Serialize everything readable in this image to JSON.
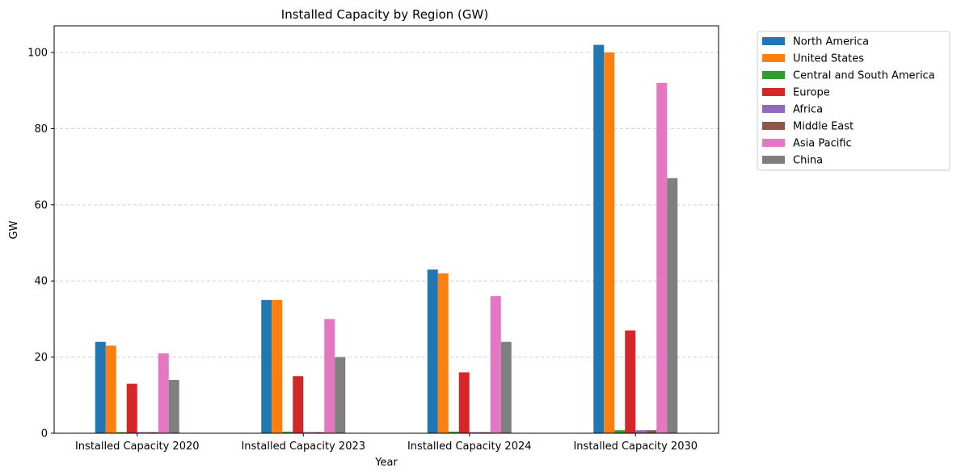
{
  "chart_data": {
    "type": "bar",
    "title": "Installed Capacity by Region (GW)",
    "xlabel": "Year",
    "ylabel": "GW",
    "ylim": [
      0,
      107
    ],
    "yticks": [
      0,
      20,
      40,
      60,
      80,
      100
    ],
    "grid": "y-dashed",
    "legend_position": "outside-top-right",
    "categories": [
      "Installed Capacity 2020",
      "Installed Capacity 2023",
      "Installed Capacity 2024",
      "Installed Capacity 2030"
    ],
    "series": [
      {
        "name": "North America",
        "color": "#1f77b4",
        "values": [
          24,
          35,
          43,
          102
        ]
      },
      {
        "name": "United States",
        "color": "#ff7f0e",
        "values": [
          23,
          35,
          42,
          100
        ]
      },
      {
        "name": "Central and South America",
        "color": "#2ca02c",
        "values": [
          0.3,
          0.4,
          0.4,
          0.8
        ]
      },
      {
        "name": "Europe",
        "color": "#d62728",
        "values": [
          13,
          15,
          16,
          27
        ]
      },
      {
        "name": "Africa",
        "color": "#9467bd",
        "values": [
          0.3,
          0.3,
          0.3,
          0.8
        ]
      },
      {
        "name": "Middle East",
        "color": "#8c564b",
        "values": [
          0.3,
          0.3,
          0.3,
          0.8
        ]
      },
      {
        "name": "Asia Pacific",
        "color": "#e377c2",
        "values": [
          21,
          30,
          36,
          92
        ]
      },
      {
        "name": "China",
        "color": "#7f7f7f",
        "values": [
          14,
          20,
          24,
          67
        ]
      }
    ]
  }
}
